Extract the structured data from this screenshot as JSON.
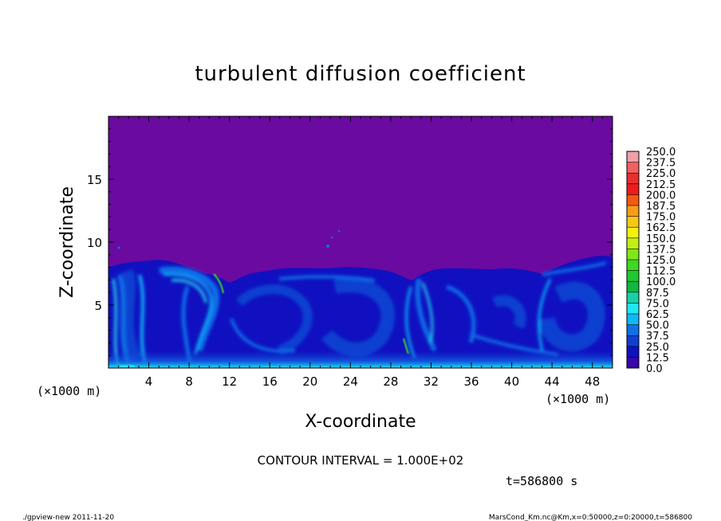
{
  "chart_data": {
    "type": "heatmap",
    "title": "turbulent diffusion coefficient",
    "xlabel": "X-coordinate",
    "ylabel": "Z-coordinate",
    "x_unit": "(×1000 m)",
    "y_unit": "(×1000 m)",
    "xlim": [
      0,
      50
    ],
    "ylim": [
      0,
      20
    ],
    "x_ticks": [
      "4",
      "8",
      "12",
      "16",
      "20",
      "24",
      "28",
      "32",
      "36",
      "40",
      "44",
      "48"
    ],
    "y_ticks": [
      "5",
      "10",
      "15"
    ],
    "colorbar_levels": [
      "250.0",
      "237.5",
      "225.0",
      "212.5",
      "200.0",
      "187.5",
      "175.0",
      "162.5",
      "150.0",
      "137.5",
      "125.0",
      "112.5",
      "100.0",
      "87.5",
      "75.0",
      "62.5",
      "50.0",
      "37.5",
      "25.0",
      "12.5",
      "0.0"
    ],
    "colorbar_colors": [
      "#f0a0a8",
      "#f36060",
      "#e83030",
      "#ee1c1c",
      "#f25a10",
      "#f89c18",
      "#f8c818",
      "#f4f010",
      "#c0f010",
      "#80e818",
      "#40d820",
      "#20c830",
      "#10b840",
      "#18d0a8",
      "#20e8f0",
      "#10b8f8",
      "#1070e8",
      "#1040d0",
      "#1010c0",
      "#3808a8",
      "#6a0aa0"
    ],
    "background_value": "0.0",
    "contour_interval": "CONTOUR INTERVAL = 1.000E+02",
    "time_label": "t=586800 s"
  },
  "footer": {
    "left": "./gpview-new  2011-11-20",
    "right": "MarsCond_Km.nc@Km,x=0:50000,z=0:20000,t=586800"
  }
}
